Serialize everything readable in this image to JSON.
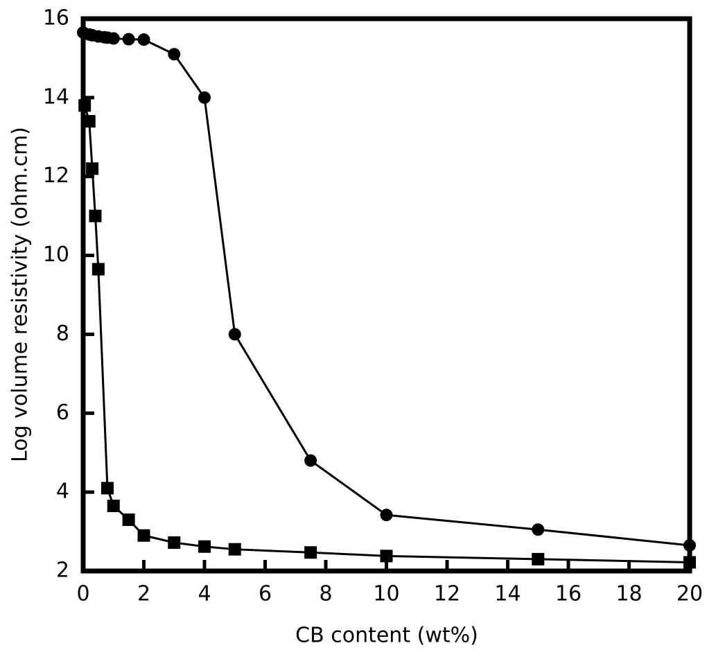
{
  "chart_data": {
    "type": "line",
    "xlabel": "CB content (wt%)",
    "ylabel": "Log volume resistivity (ohm.cm)",
    "xlim": [
      0,
      20
    ],
    "xticks": [
      0,
      2,
      4,
      6,
      8,
      10,
      12,
      14,
      16,
      18,
      20
    ],
    "ylim": [
      2,
      16
    ],
    "yticks": [
      2,
      4,
      6,
      8,
      10,
      12,
      14,
      16
    ],
    "series": [
      {
        "marker": "circle",
        "color": "#000000",
        "x": [
          0,
          0.2,
          0.3,
          0.5,
          0.7,
          0.8,
          1,
          1.5,
          2,
          3,
          4,
          5,
          7.5,
          10,
          15,
          20
        ],
        "values": [
          15.65,
          15.6,
          15.58,
          15.55,
          15.53,
          15.52,
          15.5,
          15.48,
          15.47,
          15.1,
          14,
          8,
          4.8,
          3.42,
          3.05,
          2.65
        ]
      },
      {
        "marker": "square",
        "color": "#000000",
        "x": [
          0.05,
          0.2,
          0.3,
          0.4,
          0.5,
          0.8,
          1,
          1.5,
          2,
          3,
          4,
          5,
          7.5,
          10,
          15,
          20
        ],
        "values": [
          13.8,
          13.4,
          12.2,
          11,
          9.65,
          4.1,
          3.65,
          3.3,
          2.9,
          2.72,
          2.62,
          2.55,
          2.47,
          2.38,
          2.3,
          2.22
        ]
      }
    ]
  }
}
